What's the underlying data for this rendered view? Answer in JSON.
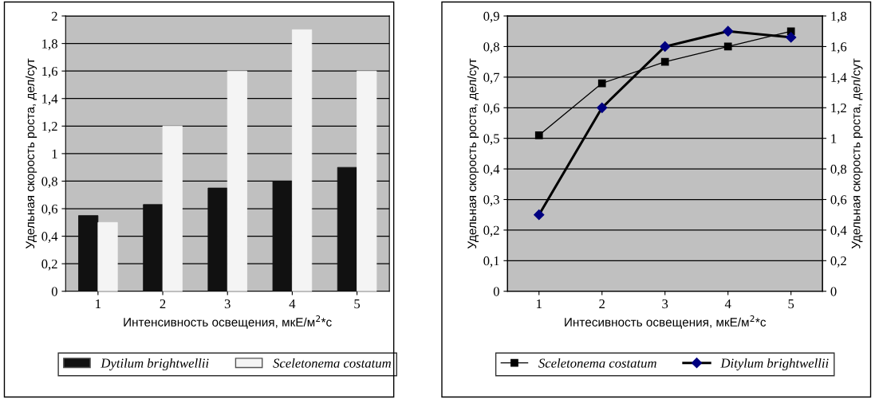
{
  "chart_data": [
    {
      "type": "bar",
      "xlabel": "Интенсивность освещения, мкЕ/м$^{2}$*с",
      "ylabel": "Удельная скорость роста, дел/сут",
      "categories": [
        "1",
        "2",
        "3",
        "4",
        "5"
      ],
      "series": [
        {
          "name": "Dytilum brightwellii",
          "color": "#111111",
          "values": [
            0.55,
            0.63,
            0.75,
            0.8,
            0.9
          ]
        },
        {
          "name": "Sceletonema costatum",
          "color": "#f4f4f4",
          "values": [
            0.5,
            1.2,
            1.6,
            1.9,
            1.6
          ]
        }
      ],
      "ylim": [
        0,
        2
      ],
      "yticks": [
        0,
        {
          "value": 0.2,
          "label": "0,2"
        },
        {
          "value": 0.4,
          "label": "0,4"
        },
        {
          "value": 0.6,
          "label": "0,6"
        },
        {
          "value": 0.8,
          "label": "0,8"
        },
        1,
        {
          "value": 1.2,
          "label": "1,2"
        },
        {
          "value": 1.4,
          "label": "1,4"
        },
        {
          "value": 1.6,
          "label": "1,6"
        },
        {
          "value": 1.8,
          "label": "1,8"
        },
        2
      ],
      "grid": "y",
      "legend": "bottom"
    },
    {
      "type": "line",
      "xlabel": "Интесивность освещения, мкЕ/м$^{2}$*с",
      "ylabel": "Удельная скорость роста, дел/сут",
      "y2label": "Удельная скорость роста, дел/сут",
      "categories": [
        "1",
        "2",
        "3",
        "4",
        "5"
      ],
      "series": [
        {
          "name": "Sceletonema costatum",
          "color": "#000000",
          "marker": "square",
          "values": [
            0.51,
            0.68,
            0.75,
            0.8,
            0.85
          ]
        },
        {
          "name": "Ditylum brightwellii",
          "color": "#000080",
          "marker": "diamond",
          "axis": "y2",
          "values": [
            0.5,
            1.2,
            1.6,
            1.7,
            1.66
          ]
        }
      ],
      "ylim": [
        0,
        0.9
      ],
      "yticks": [
        0,
        {
          "value": 0.1,
          "label": "0,1"
        },
        {
          "value": 0.2,
          "label": "0,2"
        },
        {
          "value": 0.3,
          "label": "0,3"
        },
        {
          "value": 0.4,
          "label": "0,4"
        },
        {
          "value": 0.5,
          "label": "0,5"
        },
        {
          "value": 0.6,
          "label": "0,6"
        },
        {
          "value": 0.7,
          "label": "0,7"
        },
        {
          "value": 0.8,
          "label": "0,8"
        },
        {
          "value": 0.9,
          "label": "0,9"
        }
      ],
      "y2lim": [
        0,
        1.8
      ],
      "y2ticks": [
        0,
        {
          "value": 0.2,
          "label": "0,2"
        },
        {
          "value": 0.4,
          "label": "0,4"
        },
        {
          "value": 0.6,
          "label": "0,6"
        },
        {
          "value": 0.8,
          "label": "0,8"
        },
        1,
        {
          "value": 1.2,
          "label": "1,2"
        },
        {
          "value": 1.4,
          "label": "1,4"
        },
        {
          "value": 1.6,
          "label": "1,6"
        },
        {
          "value": 1.8,
          "label": "1,8"
        }
      ],
      "grid": "y",
      "legend": "bottom"
    }
  ]
}
